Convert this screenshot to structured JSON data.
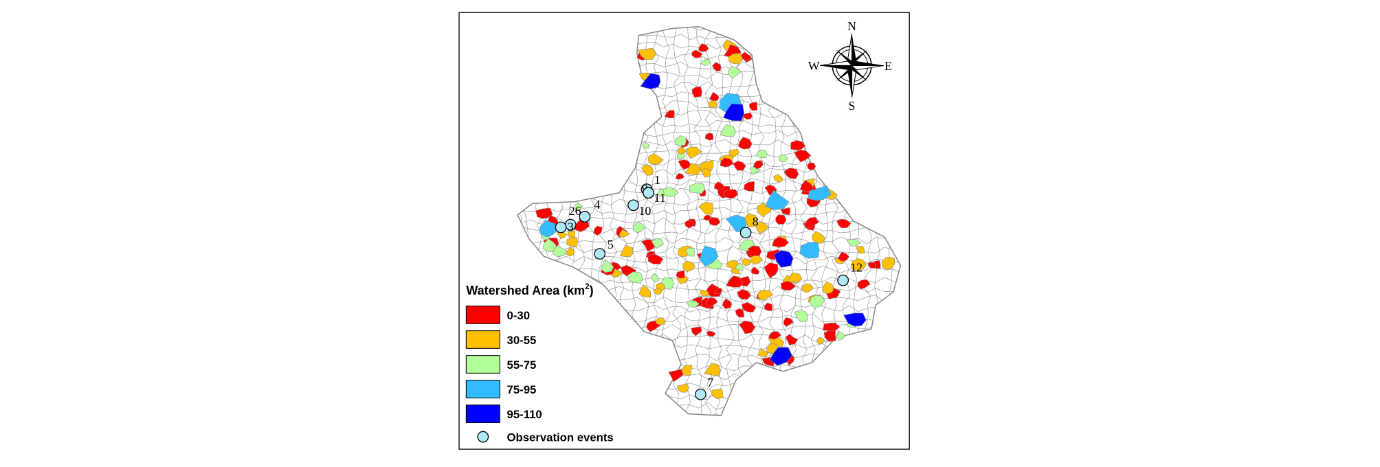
{
  "legend": {
    "title": "Watershed Area (km",
    "title_sup": "2",
    "title_end": ")",
    "items": [
      {
        "label": "0-30",
        "color": "#ff0000"
      },
      {
        "label": "30-55",
        "color": "#ffc000"
      },
      {
        "label": "55-75",
        "color": "#b3ff99"
      },
      {
        "label": "75-95",
        "color": "#33bbff"
      },
      {
        "label": "95-110",
        "color": "#0000ff"
      }
    ],
    "observation": "Observation events"
  },
  "compass": {
    "n": "N",
    "e": "E",
    "s": "S",
    "w": "W"
  },
  "observation_points": [
    "1",
    "9",
    "11",
    "10",
    "4",
    "26",
    "3",
    "5",
    "8",
    "12",
    "7"
  ]
}
